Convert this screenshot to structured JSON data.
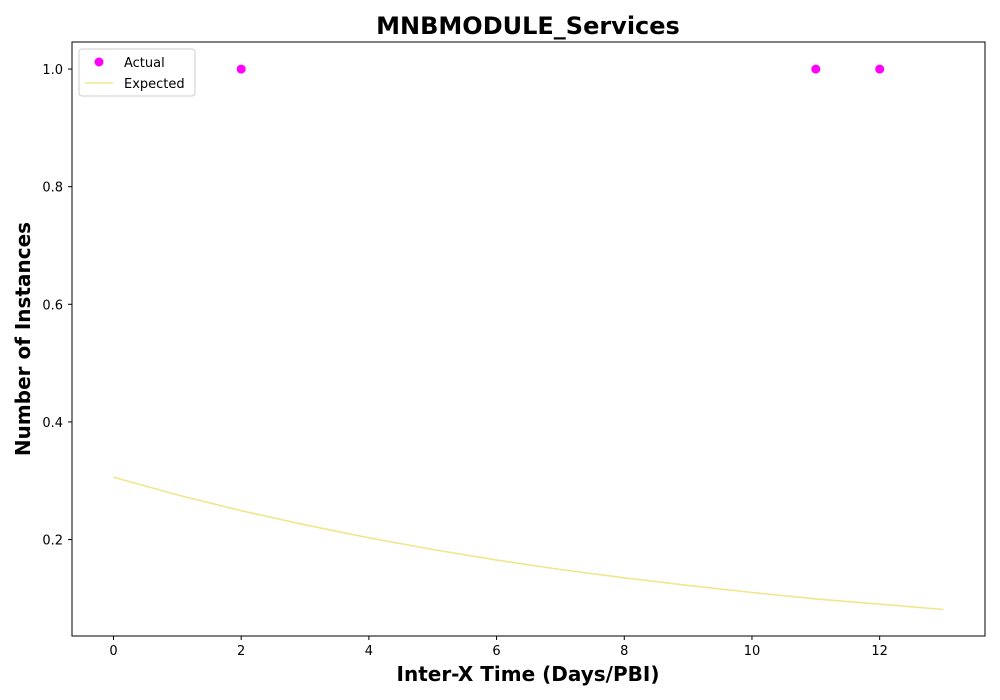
{
  "chart_data": {
    "type": "scatter",
    "title": "MNBMODULE_Services",
    "xlabel": "Inter-X Time (Days/PBI)",
    "ylabel": "Number of Instances",
    "xlim": [
      -0.65,
      13.65
    ],
    "ylim": [
      0.036,
      1.046
    ],
    "xticks": [
      0,
      2,
      4,
      6,
      8,
      10,
      12
    ],
    "yticks": [
      0.2,
      0.4,
      0.6,
      0.8,
      1.0
    ],
    "xtick_labels": [
      "0",
      "2",
      "4",
      "6",
      "8",
      "10",
      "12"
    ],
    "ytick_labels": [
      "0.2",
      "0.4",
      "0.6",
      "0.8",
      "1.0"
    ],
    "grid": false,
    "legend_position": "top-left",
    "series": [
      {
        "name": "Actual",
        "kind": "scatter",
        "color": "#ff00ff",
        "x": [
          2,
          11,
          12
        ],
        "y": [
          1.0,
          1.0,
          1.0
        ]
      },
      {
        "name": "Expected",
        "kind": "line",
        "color": "#f0e68c",
        "x": [
          0,
          1,
          2,
          3,
          4,
          5,
          6,
          7,
          8,
          9,
          10,
          11,
          12,
          13
        ],
        "y": [
          0.306,
          0.276,
          0.249,
          0.225,
          0.203,
          0.183,
          0.165,
          0.149,
          0.135,
          0.122,
          0.11,
          0.099,
          0.09,
          0.081
        ]
      }
    ]
  }
}
